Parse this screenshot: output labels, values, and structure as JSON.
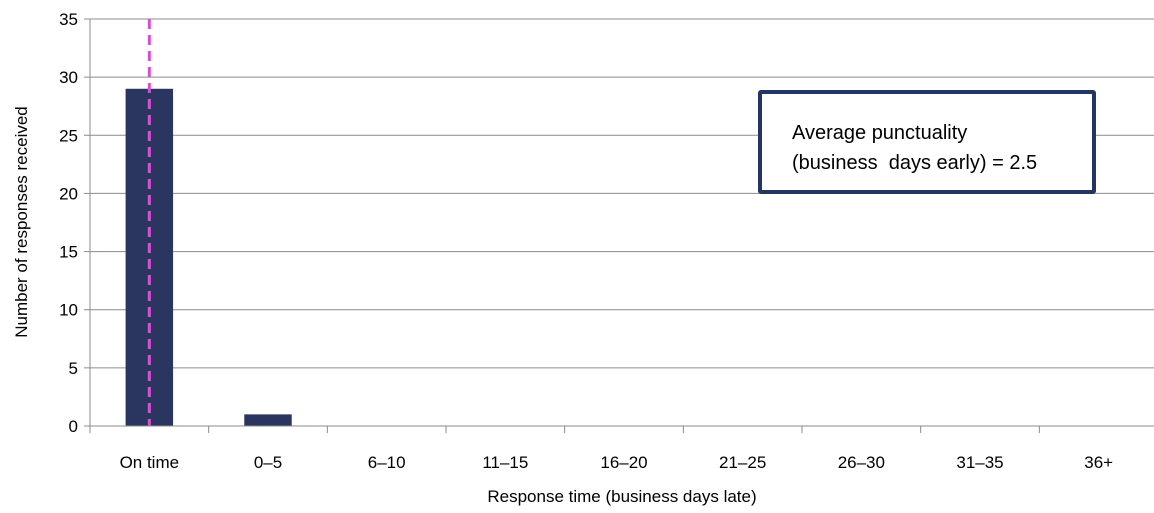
{
  "chart_data": {
    "type": "bar",
    "categories": [
      "On time",
      "0–5",
      "6–10",
      "11–15",
      "16–20",
      "21–25",
      "26–30",
      "31–35",
      "36+"
    ],
    "values": [
      29,
      1,
      0,
      0,
      0,
      0,
      0,
      0,
      0
    ],
    "xlabel": "Response time (business days late)",
    "ylabel": "Number  of responses received",
    "ylim": [
      0,
      35
    ],
    "yticks": [
      0,
      5,
      10,
      15,
      20,
      25,
      30,
      35
    ],
    "grid": true,
    "bar_color": "#2b3660",
    "reference_line": {
      "category": "On time",
      "color": "#d94fd0",
      "style": "dashed"
    },
    "annotation": {
      "line1": "Average punctuality",
      "line2": "(business  days early) = 2.5",
      "border_color": "#243463"
    }
  }
}
